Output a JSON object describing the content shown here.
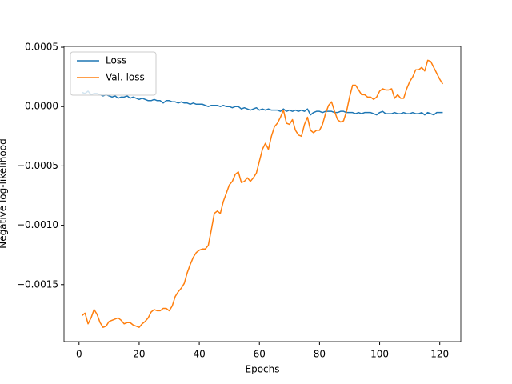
{
  "chart_data": {
    "type": "line",
    "xlabel": "Epochs",
    "ylabel": "Negative log-likelihood",
    "x": [
      1,
      2,
      3,
      4,
      5,
      6,
      7,
      8,
      9,
      10,
      11,
      12,
      13,
      14,
      15,
      16,
      17,
      18,
      19,
      20,
      21,
      22,
      23,
      24,
      25,
      26,
      27,
      28,
      29,
      30,
      31,
      32,
      33,
      34,
      35,
      36,
      37,
      38,
      39,
      40,
      41,
      42,
      43,
      44,
      45,
      46,
      47,
      48,
      49,
      50,
      51,
      52,
      53,
      54,
      55,
      56,
      57,
      58,
      59,
      60,
      61,
      62,
      63,
      64,
      65,
      66,
      67,
      68,
      69,
      70,
      71,
      72,
      73,
      74,
      75,
      76,
      77,
      78,
      79,
      80,
      81,
      82,
      83,
      84,
      85,
      86,
      87,
      88,
      89,
      90,
      91,
      92,
      93,
      94,
      95,
      96,
      97,
      98,
      99,
      100,
      101,
      102,
      103,
      104,
      105,
      106,
      107,
      108,
      109,
      110,
      111,
      112,
      113,
      114,
      115,
      116,
      117,
      118,
      119,
      120,
      121
    ],
    "series": [
      {
        "name": "Loss",
        "color": "#1f77b4",
        "values": [
          0.00012,
          0.00011,
          0.00013,
          0.0001,
          0.00011,
          0.00011,
          0.0001,
          9e-05,
          0.0001,
          9e-05,
          8e-05,
          9e-05,
          7e-05,
          8e-05,
          8e-05,
          9e-05,
          7e-05,
          8e-05,
          7e-05,
          6e-05,
          7e-05,
          6e-05,
          5e-05,
          5e-05,
          6e-05,
          5e-05,
          5e-05,
          3e-05,
          5e-05,
          5e-05,
          4e-05,
          4e-05,
          3e-05,
          4e-05,
          3e-05,
          3e-05,
          2e-05,
          3e-05,
          2e-05,
          2e-05,
          2e-05,
          1e-05,
          0,
          1e-05,
          1e-05,
          1e-05,
          0,
          1e-05,
          0,
          0,
          -1e-05,
          0,
          0,
          -2e-05,
          -1e-05,
          -2e-05,
          -3e-05,
          -2e-05,
          -1e-05,
          -3e-05,
          -2e-05,
          -3e-05,
          -2e-05,
          -3e-05,
          -3e-05,
          -3e-05,
          -4e-05,
          -2e-05,
          -4e-05,
          -3e-05,
          -4e-05,
          -3e-05,
          -4e-05,
          -3e-05,
          -4e-05,
          -2e-05,
          -7e-05,
          -5e-05,
          -4e-05,
          -4e-05,
          -5e-05,
          -4e-05,
          -4e-05,
          -4e-05,
          -5e-05,
          -5e-05,
          -4e-05,
          -4e-05,
          -5e-05,
          -5e-05,
          -5e-05,
          -6e-05,
          -5e-05,
          -6e-05,
          -5e-05,
          -5e-05,
          -5e-05,
          -6e-05,
          -7e-05,
          -5e-05,
          -4e-05,
          -6e-05,
          -6e-05,
          -6e-05,
          -5e-05,
          -6e-05,
          -6e-05,
          -5e-05,
          -6e-05,
          -6e-05,
          -5e-05,
          -6e-05,
          -6e-05,
          -5e-05,
          -7e-05,
          -5e-05,
          -6e-05,
          -7e-05,
          -5e-05,
          -5e-05,
          -5e-05
        ]
      },
      {
        "name": "Val. loss",
        "color": "#ff7f0e",
        "values": [
          -0.00176,
          -0.00174,
          -0.00183,
          -0.00178,
          -0.00171,
          -0.00175,
          -0.00182,
          -0.00186,
          -0.00185,
          -0.00181,
          -0.0018,
          -0.00179,
          -0.00178,
          -0.0018,
          -0.00183,
          -0.00182,
          -0.00182,
          -0.00184,
          -0.00185,
          -0.00186,
          -0.00183,
          -0.00181,
          -0.00178,
          -0.00173,
          -0.00171,
          -0.00172,
          -0.00172,
          -0.0017,
          -0.0017,
          -0.00172,
          -0.00168,
          -0.0016,
          -0.00156,
          -0.00153,
          -0.00149,
          -0.0014,
          -0.00133,
          -0.00127,
          -0.00123,
          -0.00121,
          -0.0012,
          -0.0012,
          -0.00117,
          -0.00104,
          -0.0009,
          -0.00088,
          -0.0009,
          -0.0008,
          -0.00073,
          -0.00066,
          -0.00063,
          -0.00057,
          -0.00055,
          -0.00064,
          -0.00063,
          -0.0006,
          -0.00063,
          -0.0006,
          -0.00056,
          -0.00046,
          -0.00036,
          -0.00031,
          -0.00036,
          -0.00025,
          -0.00017,
          -0.00014,
          -9e-05,
          -3e-05,
          -0.00014,
          -0.00015,
          -0.00011,
          -0.0002,
          -0.00024,
          -0.00025,
          -0.00015,
          -9e-05,
          -0.0002,
          -0.00022,
          -0.0002,
          -0.0002,
          -0.00015,
          -6e-05,
          1e-05,
          4e-05,
          -4e-05,
          -0.00011,
          -0.00013,
          -0.00012,
          -4e-05,
          8e-05,
          0.00018,
          0.00018,
          0.00014,
          0.0001,
          0.0001,
          8e-05,
          8e-05,
          6e-05,
          8e-05,
          0.00013,
          0.00015,
          0.00014,
          0.00014,
          0.00015,
          7e-05,
          0.0001,
          7e-05,
          7e-05,
          0.00015,
          0.00021,
          0.00025,
          0.00031,
          0.00031,
          0.00033,
          0.0003,
          0.00039,
          0.00038,
          0.00033,
          0.00028,
          0.00023,
          0.00019
        ]
      }
    ],
    "xlim": [
      -5,
      127
    ],
    "xticks": [
      0,
      20,
      40,
      60,
      80,
      100,
      120
    ],
    "ylim": [
      -0.00198,
      0.000507
    ],
    "yticks": [
      {
        "value": -0.0015,
        "label": "−0.0015"
      },
      {
        "value": -0.001,
        "label": "−0.0010"
      },
      {
        "value": -0.0005,
        "label": "−0.0005"
      },
      {
        "value": 0,
        "label": "0.0000"
      },
      {
        "value": 0.0005,
        "label": "0.0005"
      }
    ],
    "legend": "upper left"
  }
}
